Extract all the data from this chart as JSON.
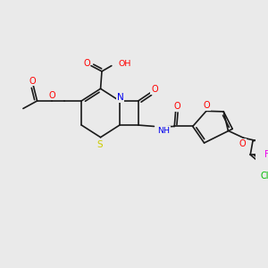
{
  "bg_color": "#eaeaea",
  "bond_color": "#1a1a1a",
  "atom_colors": {
    "O": "#ff0000",
    "N": "#0000ee",
    "S": "#cccc00",
    "Cl": "#00bb00",
    "F": "#ee00ee",
    "H": "#008888",
    "C": "#1a1a1a"
  },
  "lw": 1.2
}
